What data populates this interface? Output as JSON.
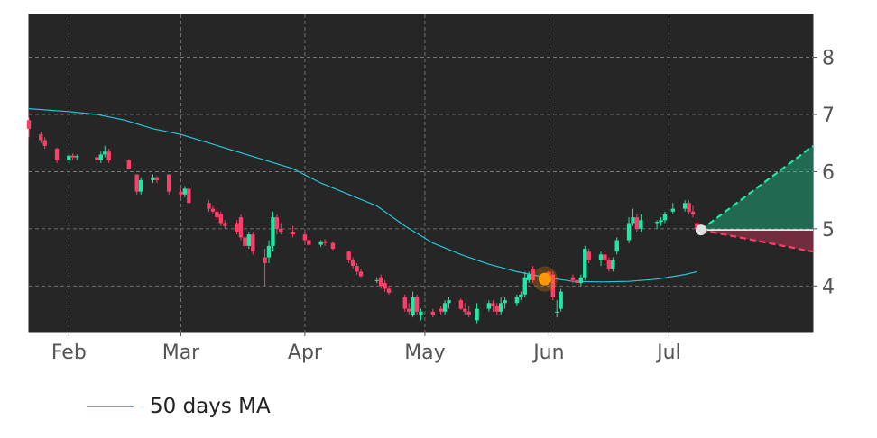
{
  "chart_data": {
    "type": "candlestick",
    "x_axis": {
      "type": "date",
      "tick_labels": [
        "Feb",
        "Mar",
        "Apr",
        "May",
        "Jun",
        "Jul"
      ],
      "tick_dates": [
        "2021-02-01",
        "2021-03-01",
        "2021-04-01",
        "2021-05-01",
        "2021-06-01",
        "2021-07-01"
      ]
    },
    "y_axis": {
      "ticks": [
        4,
        5,
        6,
        7,
        8
      ],
      "range": [
        3.2,
        8.75
      ],
      "side": "right"
    },
    "grid": true,
    "legend_placement": "bottom-left",
    "colors": {
      "background": "#262626",
      "frame": "#2b2b2b",
      "up": "#1de9a6",
      "down": "#ff3d6a",
      "ma": "#26c6da",
      "projection_up": "#1de9a6",
      "projection_down": "#ff3d6a",
      "marker": "#ff9800",
      "end_marker": "#e0e0e0"
    },
    "candles": [
      [
        "2021-01-22",
        6.9,
        6.95,
        6.6,
        6.75
      ],
      [
        "2021-01-25",
        6.65,
        6.7,
        6.5,
        6.55
      ],
      [
        "2021-01-26",
        6.55,
        6.6,
        6.4,
        6.45
      ],
      [
        "2021-01-29",
        6.4,
        6.42,
        6.15,
        6.2
      ],
      [
        "2021-02-01",
        6.2,
        6.3,
        6.15,
        6.28
      ],
      [
        "2021-02-02",
        6.28,
        6.32,
        6.2,
        6.25
      ],
      [
        "2021-02-03",
        6.25,
        6.3,
        6.2,
        6.27
      ],
      [
        "2021-02-08",
        6.25,
        6.3,
        6.15,
        6.2
      ],
      [
        "2021-02-09",
        6.2,
        6.35,
        6.15,
        6.3
      ],
      [
        "2021-02-10",
        6.3,
        6.45,
        6.25,
        6.35
      ],
      [
        "2021-02-11",
        6.35,
        6.4,
        6.15,
        6.2
      ],
      [
        "2021-02-16",
        6.2,
        6.22,
        6.05,
        6.05
      ],
      [
        "2021-02-18",
        5.95,
        5.95,
        5.6,
        5.65
      ],
      [
        "2021-02-19",
        5.65,
        5.9,
        5.6,
        5.85
      ],
      [
        "2021-02-22",
        5.85,
        5.95,
        5.8,
        5.9
      ],
      [
        "2021-02-23",
        5.9,
        5.92,
        5.8,
        5.85
      ],
      [
        "2021-02-26",
        5.95,
        5.95,
        5.6,
        5.65
      ],
      [
        "2021-03-01",
        5.65,
        5.7,
        5.55,
        5.6
      ],
      [
        "2021-03-02",
        5.6,
        5.75,
        5.55,
        5.7
      ],
      [
        "2021-03-03",
        5.7,
        5.75,
        5.45,
        5.45
      ],
      [
        "2021-03-08",
        5.45,
        5.5,
        5.3,
        5.35
      ],
      [
        "2021-03-09",
        5.35,
        5.4,
        5.25,
        5.3
      ],
      [
        "2021-03-10",
        5.3,
        5.35,
        5.15,
        5.2
      ],
      [
        "2021-03-11",
        5.25,
        5.3,
        5.05,
        5.1
      ],
      [
        "2021-03-12",
        5.1,
        5.15,
        5.0,
        5.05
      ],
      [
        "2021-03-15",
        5.1,
        5.15,
        4.9,
        4.95
      ],
      [
        "2021-03-16",
        5.2,
        5.25,
        4.8,
        4.85
      ],
      [
        "2021-03-17",
        4.85,
        4.9,
        4.65,
        4.7
      ],
      [
        "2021-03-18",
        4.7,
        4.95,
        4.65,
        4.9
      ],
      [
        "2021-03-19",
        4.9,
        4.95,
        4.55,
        4.6
      ],
      [
        "2021-03-22",
        4.5,
        4.65,
        4.0,
        4.4
      ],
      [
        "2021-03-23",
        4.5,
        4.8,
        4.4,
        4.7
      ],
      [
        "2021-03-24",
        4.7,
        5.3,
        4.6,
        5.2
      ],
      [
        "2021-03-25",
        5.2,
        5.25,
        4.9,
        5.0
      ],
      [
        "2021-03-26",
        5.0,
        5.1,
        4.9,
        4.95
      ],
      [
        "2021-03-29",
        4.95,
        5.05,
        4.85,
        4.9
      ],
      [
        "2021-04-01",
        4.9,
        4.95,
        4.75,
        4.8
      ],
      [
        "2021-04-02",
        4.8,
        4.85,
        4.7,
        4.72
      ],
      [
        "2021-04-05",
        4.72,
        4.8,
        4.68,
        4.78
      ],
      [
        "2021-04-06",
        4.78,
        4.82,
        4.7,
        4.75
      ],
      [
        "2021-04-08",
        4.75,
        4.78,
        4.62,
        4.65
      ],
      [
        "2021-04-12",
        4.6,
        4.62,
        4.4,
        4.45
      ],
      [
        "2021-04-13",
        4.45,
        4.5,
        4.3,
        4.35
      ],
      [
        "2021-04-14",
        4.35,
        4.4,
        4.2,
        4.25
      ],
      [
        "2021-04-15",
        4.25,
        4.3,
        4.15,
        4.17
      ],
      [
        "2021-04-19",
        4.1,
        4.15,
        4.05,
        4.1
      ],
      [
        "2021-04-20",
        4.15,
        4.2,
        3.95,
        4.0
      ],
      [
        "2021-04-21",
        4.05,
        4.1,
        3.9,
        3.95
      ],
      [
        "2021-04-22",
        3.95,
        4.0,
        3.85,
        3.88
      ],
      [
        "2021-04-26",
        3.8,
        3.85,
        3.55,
        3.6
      ],
      [
        "2021-04-27",
        3.6,
        3.7,
        3.5,
        3.55
      ],
      [
        "2021-04-28",
        3.5,
        3.9,
        3.45,
        3.8
      ],
      [
        "2021-04-29",
        3.8,
        3.85,
        3.5,
        3.55
      ],
      [
        "2021-04-30",
        3.5,
        3.6,
        3.4,
        3.55
      ],
      [
        "2021-05-03",
        3.55,
        3.6,
        3.45,
        3.5
      ],
      [
        "2021-05-05",
        3.6,
        3.65,
        3.5,
        3.55
      ],
      [
        "2021-05-06",
        3.55,
        3.75,
        3.5,
        3.7
      ],
      [
        "2021-05-07",
        3.7,
        3.8,
        3.6,
        3.75
      ],
      [
        "2021-05-10",
        3.75,
        3.78,
        3.58,
        3.6
      ],
      [
        "2021-05-11",
        3.6,
        3.7,
        3.5,
        3.55
      ],
      [
        "2021-05-12",
        3.55,
        3.65,
        3.45,
        3.5
      ],
      [
        "2021-05-14",
        3.4,
        3.7,
        3.35,
        3.6
      ],
      [
        "2021-05-17",
        3.6,
        3.75,
        3.55,
        3.7
      ],
      [
        "2021-05-18",
        3.7,
        3.75,
        3.55,
        3.65
      ],
      [
        "2021-05-19",
        3.65,
        3.7,
        3.5,
        3.55
      ],
      [
        "2021-05-20",
        3.55,
        3.8,
        3.5,
        3.7
      ],
      [
        "2021-05-21",
        3.7,
        3.8,
        3.6,
        3.75
      ],
      [
        "2021-05-24",
        3.7,
        3.85,
        3.65,
        3.8
      ],
      [
        "2021-05-25",
        3.8,
        3.9,
        3.75,
        3.85
      ],
      [
        "2021-05-26",
        3.85,
        4.25,
        3.8,
        4.15
      ],
      [
        "2021-05-27",
        4.1,
        4.25,
        4.05,
        4.2
      ],
      [
        "2021-05-28",
        4.3,
        4.35,
        4.05,
        4.1
      ],
      [
        "2021-06-01",
        4.25,
        4.3,
        4.1,
        4.15
      ],
      [
        "2021-06-02",
        4.2,
        4.25,
        3.75,
        3.8
      ],
      [
        "2021-06-03",
        3.55,
        3.75,
        3.45,
        3.55
      ],
      [
        "2021-06-04",
        3.6,
        3.95,
        3.55,
        3.9
      ],
      [
        "2021-06-07",
        4.15,
        4.2,
        4.05,
        4.1
      ],
      [
        "2021-06-08",
        4.1,
        4.15,
        4.0,
        4.05
      ],
      [
        "2021-06-09",
        4.05,
        4.2,
        4.0,
        4.15
      ],
      [
        "2021-06-10",
        4.15,
        4.7,
        4.1,
        4.65
      ],
      [
        "2021-06-11",
        4.6,
        4.65,
        4.4,
        4.45
      ],
      [
        "2021-06-14",
        4.45,
        4.6,
        4.35,
        4.55
      ],
      [
        "2021-06-15",
        4.55,
        4.6,
        4.4,
        4.45
      ],
      [
        "2021-06-16",
        4.45,
        4.5,
        4.25,
        4.3
      ],
      [
        "2021-06-17",
        4.3,
        4.5,
        4.25,
        4.45
      ],
      [
        "2021-06-18",
        4.6,
        4.85,
        4.55,
        4.8
      ],
      [
        "2021-06-21",
        4.8,
        5.2,
        4.75,
        5.1
      ],
      [
        "2021-06-22",
        5.1,
        5.35,
        5.05,
        5.2
      ],
      [
        "2021-06-23",
        5.2,
        5.25,
        4.95,
        5.0
      ],
      [
        "2021-06-24",
        5.0,
        5.25,
        4.95,
        5.15
      ],
      [
        "2021-06-28",
        5.1,
        5.15,
        5.0,
        5.12
      ],
      [
        "2021-06-29",
        5.12,
        5.2,
        5.05,
        5.15
      ],
      [
        "2021-06-30",
        5.15,
        5.3,
        5.1,
        5.25
      ],
      [
        "2021-07-02",
        5.3,
        5.45,
        5.25,
        5.35
      ],
      [
        "2021-07-05",
        5.35,
        5.5,
        5.3,
        5.45
      ],
      [
        "2021-07-06",
        5.45,
        5.5,
        5.25,
        5.3
      ],
      [
        "2021-07-07",
        5.3,
        5.4,
        5.2,
        5.25
      ],
      [
        "2021-07-08",
        5.1,
        5.15,
        4.95,
        5.0
      ]
    ],
    "ma50": [
      [
        "2021-01-22",
        7.1
      ],
      [
        "2021-02-01",
        7.05
      ],
      [
        "2021-02-08",
        7.0
      ],
      [
        "2021-02-15",
        6.9
      ],
      [
        "2021-02-22",
        6.75
      ],
      [
        "2021-03-01",
        6.65
      ],
      [
        "2021-03-08",
        6.5
      ],
      [
        "2021-03-15",
        6.35
      ],
      [
        "2021-03-22",
        6.2
      ],
      [
        "2021-03-29",
        6.05
      ],
      [
        "2021-04-05",
        5.8
      ],
      [
        "2021-04-12",
        5.6
      ],
      [
        "2021-04-19",
        5.4
      ],
      [
        "2021-04-26",
        5.05
      ],
      [
        "2021-05-03",
        4.75
      ],
      [
        "2021-05-10",
        4.55
      ],
      [
        "2021-05-17",
        4.38
      ],
      [
        "2021-05-24",
        4.25
      ],
      [
        "2021-05-31",
        4.15
      ],
      [
        "2021-06-07",
        4.08
      ],
      [
        "2021-06-14",
        4.07
      ],
      [
        "2021-06-21",
        4.08
      ],
      [
        "2021-06-28",
        4.12
      ],
      [
        "2021-07-05",
        4.2
      ],
      [
        "2021-07-08",
        4.25
      ]
    ],
    "crossover_marker": {
      "date": "2021-05-31",
      "value": 4.12
    },
    "forecast": {
      "start": {
        "date": "2021-07-09",
        "value": 4.98
      },
      "end_date": "2021-08-06",
      "upper_end": 6.45,
      "lower_end": 4.6
    },
    "series": [
      {
        "name": "50 days MA"
      }
    ]
  }
}
